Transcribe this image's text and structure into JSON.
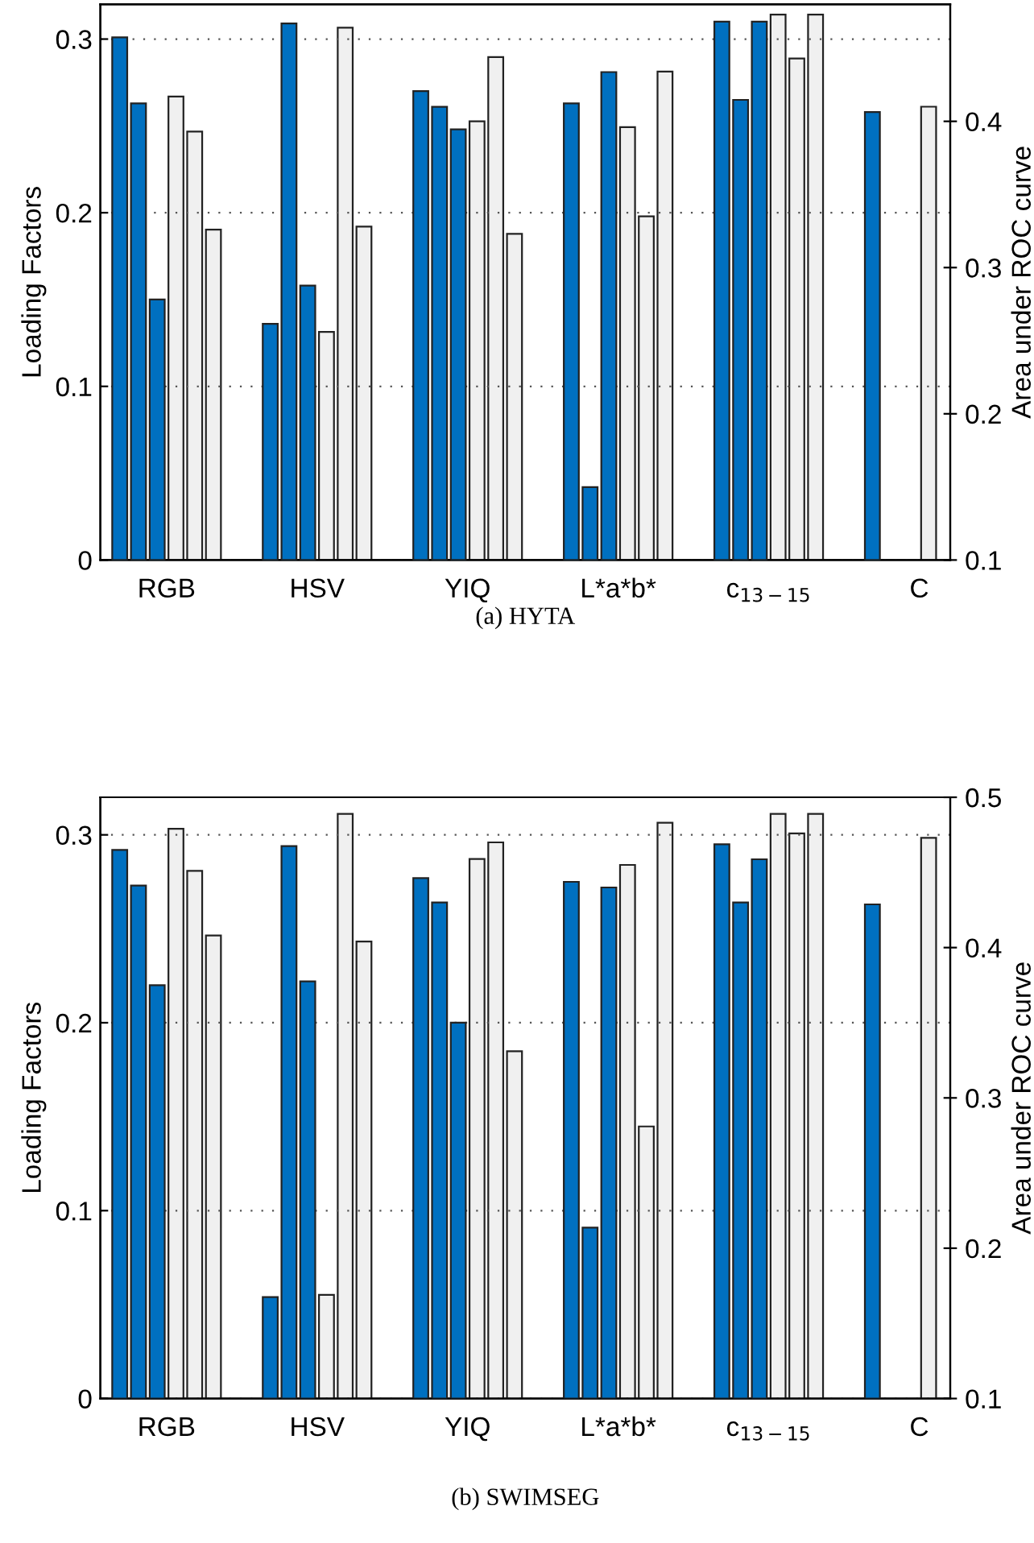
{
  "chart_data": [
    {
      "type": "bar",
      "title": "(a) HYTA",
      "ylabel": "Loading Factors",
      "y2label": "Area under ROC curve",
      "categories": [
        "RGB",
        "HSV",
        "YIQ",
        "L*a*b*",
        "c$_{13−15}$",
        "C"
      ],
      "series": [
        {
          "color": "#0070c0",
          "values": [
            0.301,
            0.136,
            0.27,
            0.263,
            0.31,
            0.258
          ]
        },
        {
          "color": "#0070c0",
          "values": [
            0.263,
            0.309,
            0.261,
            0.042,
            0.265,
            null
          ]
        },
        {
          "color": "#0070c0",
          "values": [
            0.15,
            0.158,
            0.248,
            0.281,
            0.31,
            null
          ]
        },
        {
          "color": "#f0f0f0",
          "axis": "y2",
          "values": [
            0.417,
            0.256,
            0.4,
            0.396,
            0.473,
            0.41
          ]
        },
        {
          "color": "#f0f0f0",
          "axis": "y2",
          "values": [
            0.393,
            0.464,
            0.444,
            0.335,
            0.443,
            null
          ]
        },
        {
          "color": "#f0f0f0",
          "axis": "y2",
          "values": [
            0.326,
            0.328,
            0.323,
            0.434,
            0.473,
            null
          ]
        }
      ],
      "ylim": [
        0,
        0.32
      ],
      "yticks": [
        0,
        0.1,
        0.2,
        0.3
      ],
      "y2lim": [
        0.1,
        0.48
      ],
      "y2ticks": [
        0.1,
        0.2,
        0.3,
        0.4
      ],
      "grid": "y"
    },
    {
      "type": "bar",
      "title": "(b) SWIMSEG",
      "ylabel": "Loading Factors",
      "y2label": "Area under ROC curve",
      "categories": [
        "RGB",
        "HSV",
        "YIQ",
        "L*a*b*",
        "c$_{13−15}$",
        "C"
      ],
      "series": [
        {
          "color": "#0070c0",
          "values": [
            0.292,
            0.054,
            0.277,
            0.275,
            0.295,
            0.263
          ]
        },
        {
          "color": "#0070c0",
          "values": [
            0.273,
            0.294,
            0.264,
            0.091,
            0.264,
            null
          ]
        },
        {
          "color": "#0070c0",
          "values": [
            0.22,
            0.222,
            0.2,
            0.272,
            0.287,
            null
          ]
        },
        {
          "color": "#f0f0f0",
          "axis": "y2",
          "values": [
            0.479,
            0.169,
            0.459,
            0.455,
            0.489,
            0.473
          ]
        },
        {
          "color": "#f0f0f0",
          "axis": "y2",
          "values": [
            0.451,
            0.489,
            0.47,
            0.281,
            0.476,
            null
          ]
        },
        {
          "color": "#f0f0f0",
          "axis": "y2",
          "values": [
            0.408,
            0.404,
            0.331,
            0.483,
            0.489,
            null
          ]
        }
      ],
      "ylim": [
        0,
        0.32
      ],
      "yticks": [
        0,
        0.1,
        0.2,
        0.3
      ],
      "y2lim": [
        0.1,
        0.5
      ],
      "y2ticks": [
        0.1,
        0.2,
        0.3,
        0.4,
        0.5
      ],
      "grid": "y"
    }
  ]
}
